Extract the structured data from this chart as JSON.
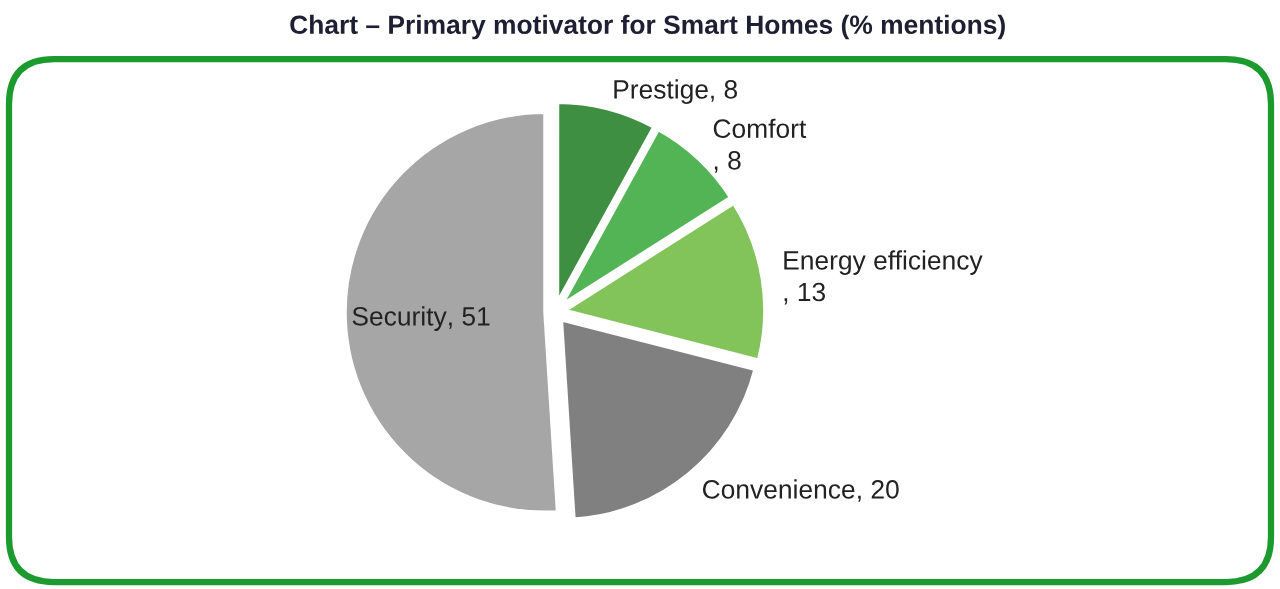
{
  "chart_data": {
    "type": "pie",
    "title": "Chart – Primary motivator for Smart Homes (% mentions)",
    "categories": [
      "Prestige",
      "Comfort",
      "Energy efficiency",
      "Convenience",
      "Security"
    ],
    "values": [
      8,
      8,
      13,
      20,
      51
    ],
    "value_labels": [
      ", 8",
      ", 8",
      ", 13",
      ", 20",
      ", 51"
    ],
    "colors": [
      "#3f8f43",
      "#52b455",
      "#82c35a",
      "#808080",
      "#a6a6a6"
    ]
  }
}
